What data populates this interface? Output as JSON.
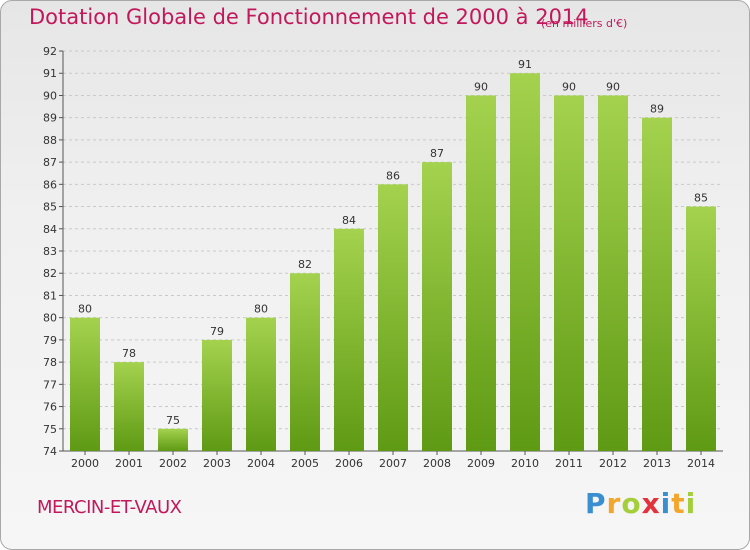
{
  "header": {
    "title": "Dotation Globale de Fonctionnement de 2000 à 2014",
    "unit": "(en milliers d'€)"
  },
  "footer": {
    "place": "MERCIN-ET-VAUX",
    "brand": [
      "P",
      "r",
      "o",
      "x",
      "i",
      "t",
      "i"
    ]
  },
  "colors": {
    "title": "#c2185b",
    "bar_top": "#a4d24e",
    "bar_bottom": "#5f9a14",
    "grid": "#c9c9c9",
    "axis": "#555555",
    "label": "#333333"
  },
  "chart_data": {
    "type": "bar",
    "title": "Dotation Globale de Fonctionnement de 2000 à 2014",
    "xlabel": "",
    "ylabel": "",
    "ylim": [
      74,
      92
    ],
    "yticks": [
      74,
      75,
      76,
      77,
      78,
      79,
      80,
      81,
      82,
      83,
      84,
      85,
      86,
      87,
      88,
      89,
      90,
      91,
      92
    ],
    "grid": true,
    "categories": [
      "2000",
      "2001",
      "2002",
      "2003",
      "2004",
      "2005",
      "2006",
      "2007",
      "2008",
      "2009",
      "2010",
      "2011",
      "2012",
      "2013",
      "2014"
    ],
    "values": [
      80,
      78,
      75,
      79,
      80,
      82,
      84,
      86,
      87,
      90,
      91,
      90,
      90,
      89,
      85
    ]
  }
}
